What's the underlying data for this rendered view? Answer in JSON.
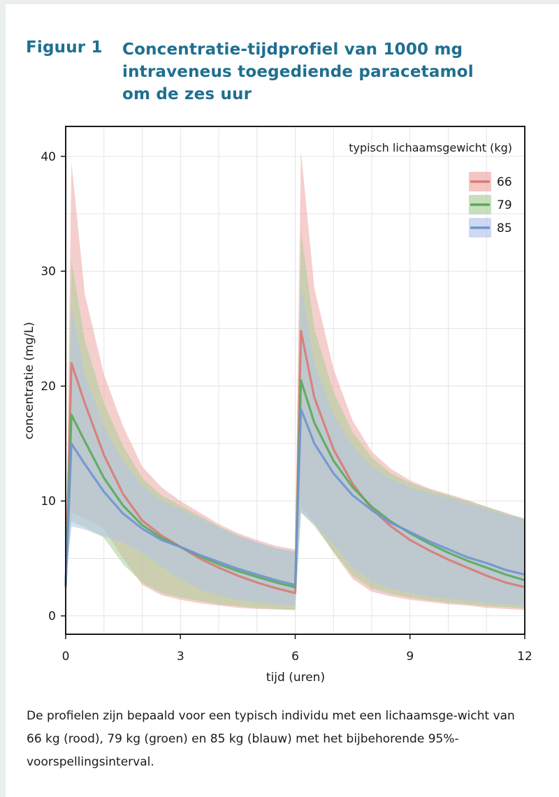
{
  "figure": {
    "number": "Figuur 1",
    "title": "Concentratie-tijdprofiel van 1000 mg intraveneus toegediende paracetamol om de zes uur",
    "caption": "De profielen zijn bepaald voor een typisch individu met een lichaamsge-wicht van 66 kg (rood), 79 kg (groen) en 85 kg (blauw) met het bijbehorende 95%-voorspellingsinterval."
  },
  "chart_data": {
    "type": "line",
    "xlabel": "tijd (uren)",
    "ylabel": "concentratie (mg/L)",
    "xlim": [
      0,
      12
    ],
    "ylim": [
      -1.6,
      42.6
    ],
    "xticks": [
      0,
      3,
      6,
      9,
      12
    ],
    "yticks": [
      0,
      10,
      20,
      30,
      40
    ],
    "grid": true,
    "legend": {
      "title": "typisch lichaamsgewicht (kg)",
      "position": "top-right"
    },
    "series": [
      {
        "name": "66",
        "color": "#d97a74",
        "band_color": "#eda8a4",
        "x": [
          0,
          0.15,
          0.5,
          1,
          1.5,
          2,
          2.5,
          3,
          3.5,
          4,
          4.5,
          5,
          5.5,
          5.99,
          6.0,
          6.15,
          6.5,
          7,
          7.5,
          8,
          8.5,
          9,
          9.5,
          10,
          10.5,
          11,
          11.5,
          12
        ],
        "y": [
          2.5,
          22.0,
          18.5,
          14.0,
          10.6,
          8.3,
          7.0,
          6.0,
          5.0,
          4.2,
          3.5,
          2.9,
          2.4,
          2.0,
          2.0,
          24.8,
          19.0,
          14.5,
          11.5,
          9.3,
          7.8,
          6.6,
          5.7,
          4.9,
          4.2,
          3.5,
          2.9,
          2.5
        ],
        "upper": [
          2.5,
          39.5,
          28.0,
          21.0,
          16.5,
          13.0,
          11.2,
          10.0,
          9.0,
          8.0,
          7.2,
          6.6,
          6.1,
          5.8,
          5.8,
          40.5,
          28.5,
          21.5,
          17.0,
          14.3,
          12.8,
          11.8,
          11.1,
          10.6,
          10.1,
          9.5,
          9.0,
          8.4
        ],
        "lower": [
          2.5,
          9.0,
          8.5,
          7.6,
          5.0,
          2.7,
          1.8,
          1.4,
          1.1,
          0.9,
          0.7,
          0.6,
          0.55,
          0.5,
          0.5,
          9.5,
          8.0,
          5.5,
          3.2,
          2.1,
          1.7,
          1.4,
          1.2,
          1.0,
          0.9,
          0.7,
          0.6,
          0.5
        ]
      },
      {
        "name": "79",
        "color": "#5aaa5a",
        "band_color": "#a8cf98",
        "x": [
          0,
          0.15,
          0.5,
          1,
          1.5,
          2,
          2.5,
          3,
          3.5,
          4,
          4.5,
          5,
          5.5,
          5.99,
          6.0,
          6.15,
          6.5,
          7,
          7.5,
          8,
          8.5,
          9,
          9.5,
          10,
          10.5,
          11,
          11.5,
          12
        ],
        "y": [
          2.7,
          17.5,
          15.2,
          12.0,
          9.6,
          7.9,
          6.8,
          6.0,
          5.2,
          4.5,
          3.9,
          3.4,
          2.9,
          2.5,
          2.5,
          20.5,
          16.8,
          13.5,
          11.2,
          9.5,
          8.2,
          7.2,
          6.3,
          5.5,
          4.8,
          4.2,
          3.6,
          3.1
        ],
        "upper": [
          2.7,
          31.0,
          24.0,
          18.5,
          14.8,
          12.0,
          10.5,
          9.6,
          8.7,
          7.8,
          7.0,
          6.4,
          5.9,
          5.6,
          5.6,
          33.5,
          25.0,
          19.5,
          16.0,
          13.8,
          12.4,
          11.6,
          11.0,
          10.5,
          10.0,
          9.5,
          8.9,
          8.5
        ],
        "lower": [
          2.7,
          8.2,
          7.7,
          6.8,
          4.5,
          2.9,
          2.0,
          1.6,
          1.3,
          1.0,
          0.85,
          0.7,
          0.6,
          0.55,
          0.55,
          9.0,
          7.8,
          5.6,
          3.5,
          2.4,
          1.9,
          1.6,
          1.35,
          1.15,
          1.0,
          0.85,
          0.75,
          0.65
        ]
      },
      {
        "name": "85",
        "color": "#6f93d2",
        "band_color": "#b3c4ea",
        "x": [
          0,
          0.15,
          0.5,
          1,
          1.5,
          2,
          2.5,
          3,
          3.5,
          4,
          4.5,
          5,
          5.5,
          5.99,
          6.0,
          6.15,
          6.5,
          7,
          7.5,
          8,
          8.5,
          9,
          9.5,
          10,
          10.5,
          11,
          11.5,
          12
        ],
        "y": [
          2.7,
          15.0,
          13.2,
          10.8,
          8.9,
          7.6,
          6.6,
          6.0,
          5.3,
          4.7,
          4.1,
          3.6,
          3.1,
          2.7,
          2.7,
          18.0,
          15.0,
          12.4,
          10.5,
          9.2,
          8.1,
          7.3,
          6.5,
          5.8,
          5.1,
          4.6,
          4.0,
          3.6
        ],
        "upper": [
          2.7,
          27.0,
          21.0,
          16.5,
          13.5,
          11.3,
          10.0,
          9.3,
          8.5,
          7.7,
          7.0,
          6.4,
          5.9,
          5.6,
          5.6,
          29.0,
          22.0,
          17.5,
          14.8,
          13.0,
          11.9,
          11.2,
          10.7,
          10.3,
          9.8,
          9.3,
          8.8,
          8.4
        ],
        "lower": [
          2.7,
          7.8,
          7.5,
          6.9,
          6.4,
          5.5,
          4.3,
          3.2,
          2.3,
          1.8,
          1.4,
          1.2,
          1.0,
          0.9,
          0.9,
          9.0,
          8.0,
          6.2,
          4.2,
          3.0,
          2.4,
          2.0,
          1.7,
          1.5,
          1.3,
          1.1,
          1.0,
          0.9
        ]
      }
    ]
  }
}
